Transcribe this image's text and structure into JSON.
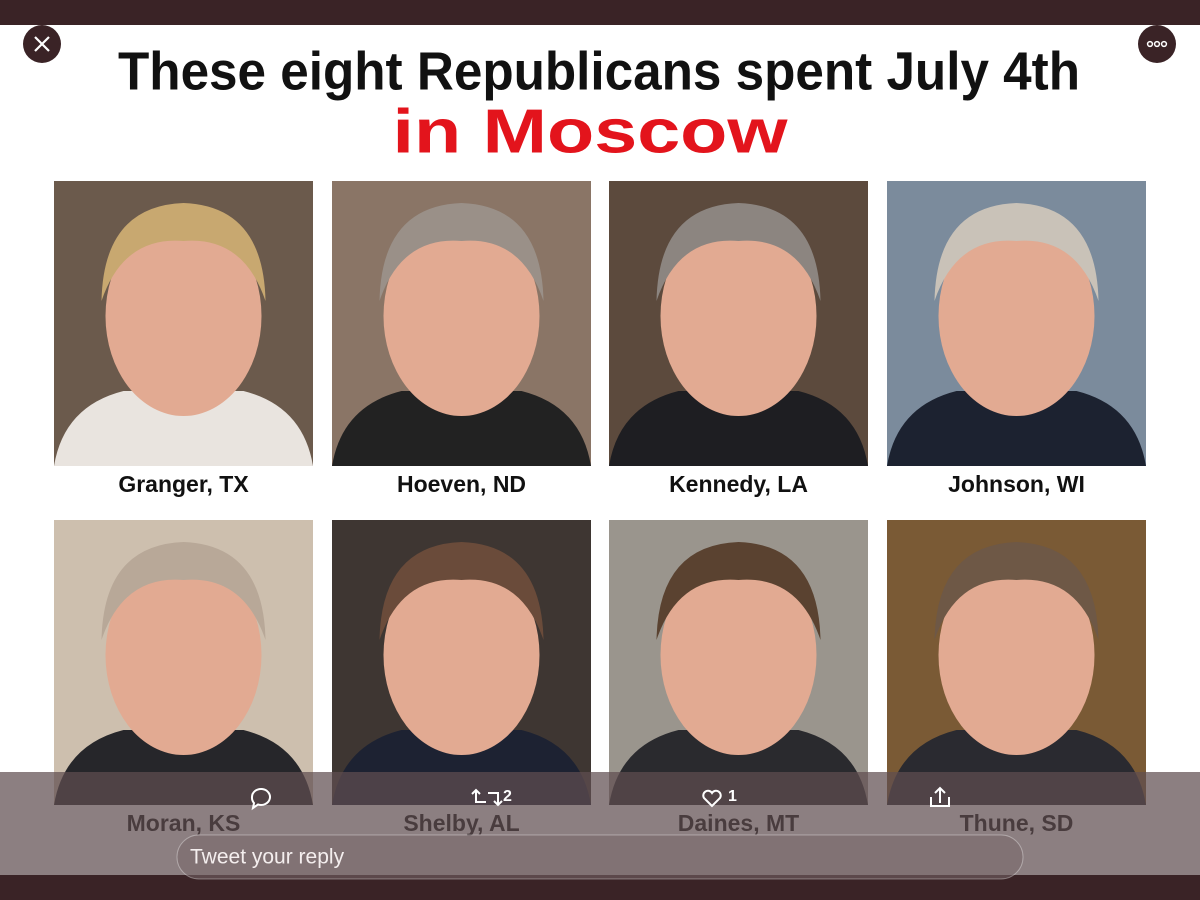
{
  "header": {
    "title_line1": "These eight Republicans spent July 4th",
    "title_line2": "in Moscow"
  },
  "people": [
    {
      "label": "Granger, TX"
    },
    {
      "label": "Hoeven, ND"
    },
    {
      "label": "Kennedy, LA"
    },
    {
      "label": "Johnson, WI"
    },
    {
      "label": "Moran, KS"
    },
    {
      "label": "Shelby, AL"
    },
    {
      "label": "Daines, MT"
    },
    {
      "label": "Thune, SD"
    }
  ],
  "actions": {
    "retweets": 2,
    "likes": 1
  },
  "reply": {
    "placeholder": "Tweet your reply"
  }
}
